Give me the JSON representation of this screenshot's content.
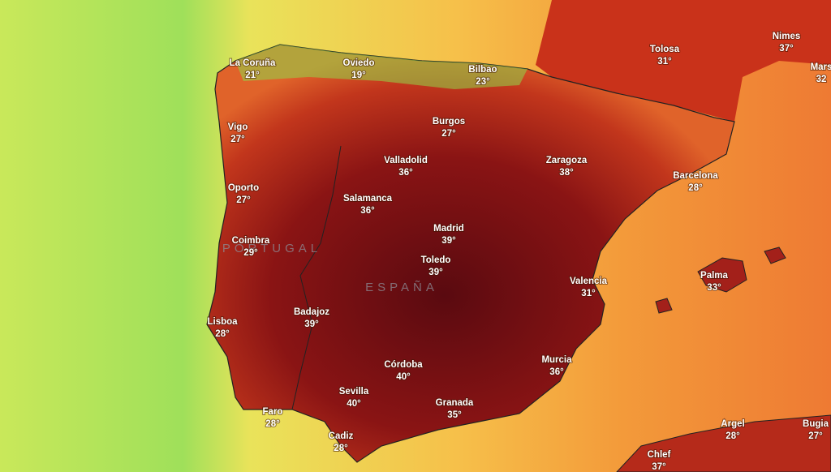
{
  "map": {
    "countries": [
      "PORTUGAL",
      "ESPAÑA"
    ],
    "cities": [
      {
        "name": "La Coruña",
        "temp": "21°"
      },
      {
        "name": "Oviedo",
        "temp": "19°"
      },
      {
        "name": "Bilbao",
        "temp": "23°"
      },
      {
        "name": "Tolosa",
        "temp": "31°"
      },
      {
        "name": "Nimes",
        "temp": "37°"
      },
      {
        "name": "Mars",
        "temp": "32"
      },
      {
        "name": "Vigo",
        "temp": "27°"
      },
      {
        "name": "Burgos",
        "temp": "27°"
      },
      {
        "name": "Valladolid",
        "temp": "36°"
      },
      {
        "name": "Zaragoza",
        "temp": "38°"
      },
      {
        "name": "Barcelona",
        "temp": "28°"
      },
      {
        "name": "Oporto",
        "temp": "27°"
      },
      {
        "name": "Salamanca",
        "temp": "36°"
      },
      {
        "name": "Madrid",
        "temp": "39°"
      },
      {
        "name": "Coimbra",
        "temp": "29°"
      },
      {
        "name": "Toledo",
        "temp": "39°"
      },
      {
        "name": "Valencia",
        "temp": "31°"
      },
      {
        "name": "Palma",
        "temp": "33°"
      },
      {
        "name": "Badajoz",
        "temp": "39°"
      },
      {
        "name": "Lisboa",
        "temp": "28°"
      },
      {
        "name": "Córdoba",
        "temp": "40°"
      },
      {
        "name": "Murcia",
        "temp": "36°"
      },
      {
        "name": "Sevilla",
        "temp": "40°"
      },
      {
        "name": "Granada",
        "temp": "35°"
      },
      {
        "name": "Faro",
        "temp": "28°"
      },
      {
        "name": "Cadiz",
        "temp": "28°"
      },
      {
        "name": "Argel",
        "temp": "28°"
      },
      {
        "name": "Bugia",
        "temp": "27°"
      },
      {
        "name": "Chlef",
        "temp": "37°"
      }
    ]
  }
}
